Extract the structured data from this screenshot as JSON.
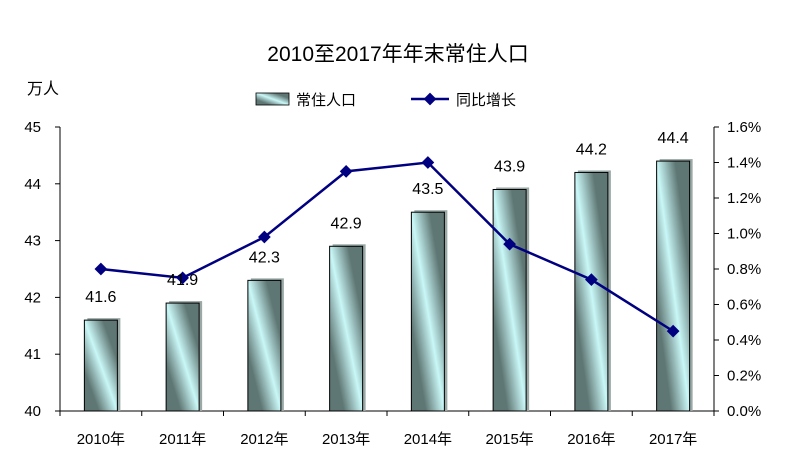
{
  "chart_data": {
    "type": "bar",
    "title": "2010至2017年年末常住人口",
    "ylabel": "万人",
    "xlabel": "",
    "categories": [
      "2010年",
      "2011年",
      "2012年",
      "2013年",
      "2014年",
      "2015年",
      "2016年",
      "2017年"
    ],
    "series": [
      {
        "name": "常住人口",
        "type": "bar",
        "axis": "left",
        "values": [
          41.6,
          41.9,
          42.3,
          42.9,
          43.5,
          43.9,
          44.2,
          44.4
        ],
        "data_labels": [
          "41.6",
          "41.9",
          "42.3",
          "42.9",
          "43.5",
          "43.9",
          "44.2",
          "44.4"
        ],
        "color": "#5f7774",
        "highlight_color": "#c9f7f7"
      },
      {
        "name": "同比增长",
        "type": "line",
        "axis": "right",
        "values": [
          0.8,
          0.75,
          0.98,
          1.35,
          1.4,
          0.94,
          0.74,
          0.45
        ],
        "color": "#000080",
        "marker": "diamond"
      }
    ],
    "ylim": [
      40,
      45
    ],
    "yticks": [
      40,
      41,
      42,
      43,
      44,
      45
    ],
    "ytick_labels": [
      "40",
      "41",
      "42",
      "43",
      "44",
      "45"
    ],
    "y2lim": [
      0,
      1.6
    ],
    "y2ticks": [
      0,
      0.2,
      0.4,
      0.6,
      0.8,
      1.0,
      1.2,
      1.4,
      1.6
    ],
    "y2tick_labels": [
      "0.0%",
      "0.2%",
      "0.4%",
      "0.6%",
      "0.8%",
      "1.0%",
      "1.2%",
      "1.4%",
      "1.6%"
    ],
    "grid": false,
    "legend": "top-center"
  }
}
